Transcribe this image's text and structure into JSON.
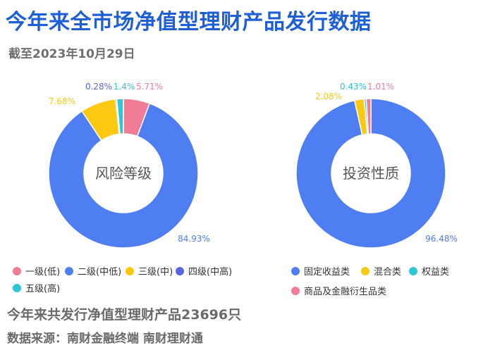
{
  "title": "今年来全市场净值型理财产品发行数据",
  "subtitle": "截至2023年10月29日",
  "chart_data": [
    {
      "type": "pie",
      "title": "风险等级",
      "categories": [
        "一级(低)",
        "二级(中低)",
        "三级(中)",
        "四级(中高)",
        "五级(高)"
      ],
      "values": [
        5.71,
        84.93,
        7.68,
        0.28,
        1.4
      ],
      "labels": [
        "5.71%",
        "84.93%",
        "7.68%",
        "0.28%",
        "1.4%"
      ],
      "colors": [
        "#f07c97",
        "#4f7ef3",
        "#fbc911",
        "#5b64e0",
        "#2ec7d3"
      ],
      "legend_position": "bottom"
    },
    {
      "type": "pie",
      "title": "投资性质",
      "categories": [
        "固定收益类",
        "混合类",
        "权益类",
        "商品及金融衍生品类"
      ],
      "values": [
        96.48,
        2.08,
        0.43,
        1.01
      ],
      "labels": [
        "96.48%",
        "2.08%",
        "0.43%",
        "1.01%"
      ],
      "colors": [
        "#4f7ef3",
        "#fbc911",
        "#2ec7d3",
        "#f07c97"
      ],
      "legend_position": "bottom"
    }
  ],
  "footer": {
    "total": "今年来共发行净值型理财产品23696只",
    "source": "数据来源：南财金融终端 南财理财通"
  }
}
